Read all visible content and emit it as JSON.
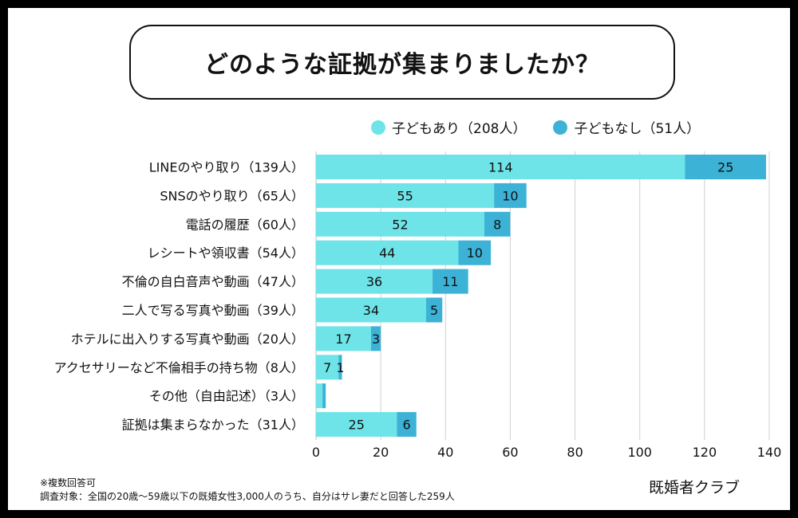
{
  "title": "どのような証拠が集まりましたか？",
  "legend": [
    {
      "label": "子どもあり（208人）",
      "color": "#6ee3e8"
    },
    {
      "label": "子どもなし（51人）",
      "color": "#3bb2d6"
    }
  ],
  "chart_data": {
    "type": "bar",
    "orientation": "horizontal",
    "stacked": true,
    "categories": [
      "LINEのやり取り（139人）",
      "SNSのやり取り（65人）",
      "電話の履歴（60人）",
      "レシートや領収書（54人）",
      "不倫の自白音声や動画（47人）",
      "二人で写る写真や動画（39人）",
      "ホテルに出入りする写真や動画（20人）",
      "アクセサリーなど不倫相手の持ち物（8人）",
      "その他（自由記述）（3人）",
      "証拠は集まらなかった（31人）"
    ],
    "series": [
      {
        "name": "子どもあり（208人）",
        "values": [
          114,
          55,
          52,
          44,
          36,
          34,
          17,
          7,
          2,
          25
        ],
        "color": "#6ee3e8"
      },
      {
        "name": "子どもなし（51人）",
        "values": [
          25,
          10,
          8,
          10,
          11,
          5,
          3,
          1,
          1,
          6
        ],
        "color": "#3bb2d6"
      }
    ],
    "data_labels": [
      [
        "114",
        "25"
      ],
      [
        "55",
        "10"
      ],
      [
        "52",
        "8"
      ],
      [
        "44",
        "10"
      ],
      [
        "36",
        "11"
      ],
      [
        "34",
        "5"
      ],
      [
        "17",
        "3"
      ],
      [
        "7",
        "1"
      ],
      [
        "",
        ""
      ],
      [
        "25",
        "6"
      ]
    ],
    "xlim": [
      0,
      140
    ],
    "xticks": [
      0,
      20,
      40,
      60,
      80,
      100,
      120,
      140
    ],
    "grid": true
  },
  "notes": [
    "※複数回答可",
    "調査対象：全国の20歳〜59歳以下の既婚女性3,000人のうち、自分はサレ妻だと回答した259人"
  ],
  "brand": "既婚者クラブ"
}
